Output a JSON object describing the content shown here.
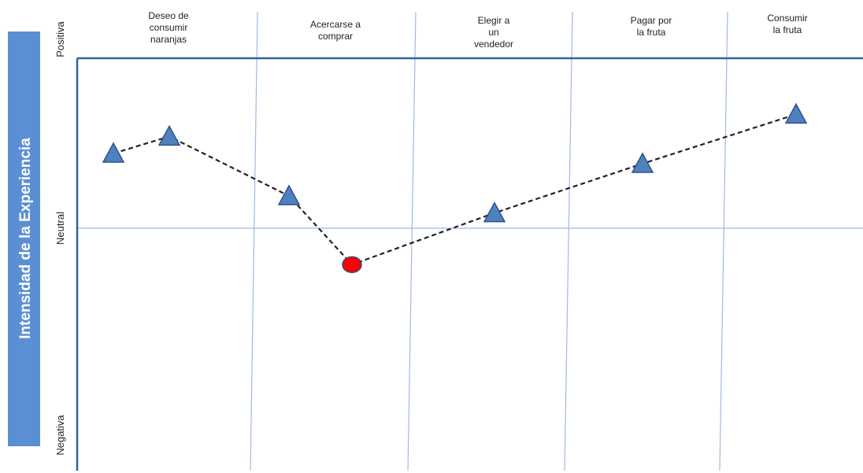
{
  "y_axis_title": "Intensidad de la Experiencia",
  "y_levels": {
    "positive": "Positiva",
    "neutral": "Neutral",
    "negative": "Negativa"
  },
  "stages": [
    {
      "lines": [
        "Deseo de",
        "consumir",
        "naranjas"
      ]
    },
    {
      "lines": [
        "Acercarse a",
        "comprar"
      ]
    },
    {
      "lines": [
        "Elegir a",
        "un",
        "vendedor"
      ]
    },
    {
      "lines": [
        "Pagar por",
        "la fruta"
      ]
    },
    {
      "lines": [
        "Consumir",
        "la fruta"
      ]
    }
  ],
  "journey_points": [
    {
      "stage": 1,
      "shape": "triangle",
      "level": 0.44
    },
    {
      "stage": 1,
      "shape": "triangle",
      "level": 0.54
    },
    {
      "stage": 2,
      "shape": "triangle",
      "level": 0.19
    },
    {
      "stage": 2,
      "shape": "circle",
      "level": -0.15
    },
    {
      "stage": 3,
      "shape": "triangle",
      "level": 0.09
    },
    {
      "stage": 4,
      "shape": "triangle",
      "level": 0.38
    },
    {
      "stage": 5,
      "shape": "triangle",
      "level": 0.67
    }
  ],
  "colors": {
    "triangle": "#4f81bd",
    "circle": "#ff0000",
    "band": "#5b8fd4",
    "grid": "#9fbbe0",
    "frame": "#36609a",
    "path": "#222222"
  }
}
